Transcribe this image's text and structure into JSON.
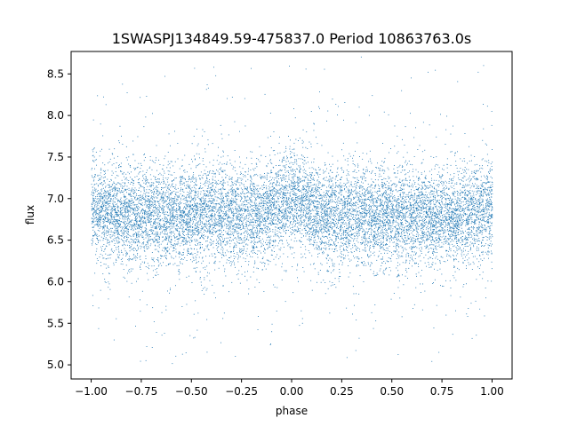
{
  "chart_data": {
    "type": "scatter",
    "title": "1SWASPJ134849.59-475837.0 Period 10863763.0s",
    "xlabel": "phase",
    "ylabel": "flux",
    "xlim": [
      -1.1,
      1.1
    ],
    "ylim": [
      4.83,
      8.77
    ],
    "xticks": [
      -1.0,
      -0.75,
      -0.5,
      -0.25,
      0.0,
      0.25,
      0.5,
      0.75,
      1.0
    ],
    "xtick_labels": [
      "−1.00",
      "−0.75",
      "−0.50",
      "−0.25",
      "0.00",
      "0.25",
      "0.50",
      "0.75",
      "1.00"
    ],
    "yticks": [
      5.0,
      5.5,
      6.0,
      6.5,
      7.0,
      7.5,
      8.0,
      8.5
    ],
    "ytick_labels": [
      "5.0",
      "5.5",
      "6.0",
      "6.5",
      "7.0",
      "7.5",
      "8.0",
      "8.5"
    ],
    "grid": false,
    "marker_color": "#1f77b4",
    "series": [
      {
        "name": "",
        "x_range": [
          -1.0,
          1.0
        ],
        "core_band": [
          6.3,
          7.3
        ],
        "points_approx": 12000
      }
    ]
  }
}
